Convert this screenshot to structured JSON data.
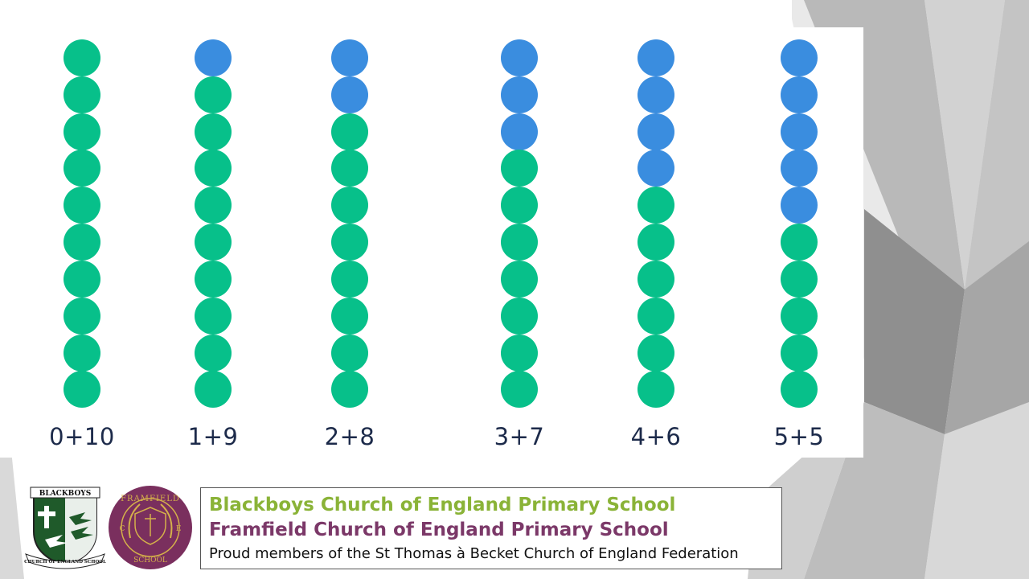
{
  "bead_colors": {
    "blue": "#3a8ddf",
    "green": "#07c08a"
  },
  "bead_total": 10,
  "frames": [
    {
      "label": "0+10",
      "blue": 0,
      "green": 10
    },
    {
      "label": "1+9",
      "blue": 1,
      "green": 9
    },
    {
      "label": "2+8",
      "blue": 2,
      "green": 8
    },
    {
      "label": "3+7",
      "blue": 3,
      "green": 7
    },
    {
      "label": "4+6",
      "blue": 4,
      "green": 6
    },
    {
      "label": "5+5",
      "blue": 5,
      "green": 5
    }
  ],
  "footer": {
    "school1": "Blackboys Church of England Primary School",
    "school2": "Framfield Church of England Primary School",
    "federation": "Proud members of the St Thomas à Becket Church of England Federation",
    "school1_color": "#8ab337",
    "school2_color": "#7b3868"
  },
  "logos": {
    "blackboys": {
      "top_text": "BLACKBOYS",
      "bottom_text": "CHURCH OF ENGLAND SCHOOL"
    },
    "framfield": {
      "top_text": "FRAMFIELD",
      "bottom_text": "SCHOOL",
      "left_letter": "C",
      "right_letter": "E"
    }
  }
}
